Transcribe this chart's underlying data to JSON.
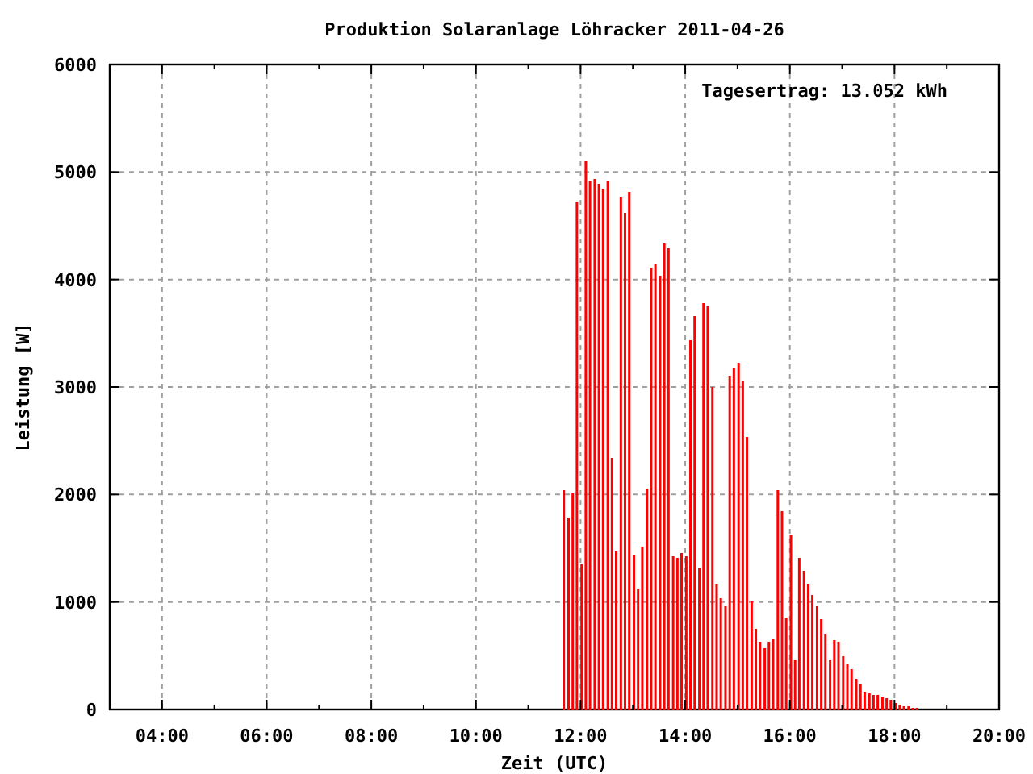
{
  "chart_data": {
    "type": "bar",
    "title": "Produktion Solaranlage Löhracker 2011-04-26",
    "xlabel": "Zeit (UTC)",
    "ylabel": "Leistung [W]",
    "annotations": [
      "Tagesertrag: 13.052 kWh"
    ],
    "x": [
      11.68,
      11.77,
      11.85,
      11.93,
      12.02,
      12.1,
      12.18,
      12.27,
      12.35,
      12.43,
      12.52,
      12.6,
      12.68,
      12.77,
      12.85,
      12.93,
      13.02,
      13.1,
      13.18,
      13.27,
      13.35,
      13.43,
      13.52,
      13.6,
      13.68,
      13.77,
      13.85,
      13.93,
      14.02,
      14.1,
      14.18,
      14.27,
      14.35,
      14.43,
      14.52,
      14.6,
      14.68,
      14.77,
      14.85,
      14.93,
      15.02,
      15.1,
      15.18,
      15.27,
      15.35,
      15.43,
      15.52,
      15.6,
      15.68,
      15.77,
      15.85,
      15.93,
      16.02,
      16.1,
      16.18,
      16.27,
      16.35,
      16.43,
      16.52,
      16.6,
      16.68,
      16.77,
      16.85,
      16.93,
      17.02,
      17.1,
      17.18,
      17.27,
      17.35,
      17.43,
      17.52,
      17.6,
      17.68,
      17.77,
      17.85,
      17.93,
      18.02,
      18.1,
      18.18,
      18.27,
      18.35,
      18.43
    ],
    "values": [
      2040,
      1785,
      2010,
      4725,
      1350,
      5100,
      4920,
      4935,
      4890,
      4845,
      4920,
      2340,
      1470,
      4770,
      4620,
      4815,
      1440,
      1125,
      1515,
      2055,
      4110,
      4140,
      4035,
      4335,
      4290,
      1425,
      1410,
      1455,
      1425,
      3435,
      3660,
      1320,
      3780,
      3750,
      3000,
      1170,
      1035,
      960,
      3105,
      3180,
      3225,
      3060,
      2535,
      1005,
      750,
      630,
      570,
      630,
      660,
      2040,
      1845,
      855,
      1620,
      465,
      1410,
      1290,
      1170,
      1065,
      960,
      840,
      705,
      465,
      645,
      630,
      495,
      420,
      375,
      285,
      240,
      165,
      150,
      135,
      135,
      120,
      105,
      90,
      60,
      45,
      30,
      30,
      15,
      15
    ],
    "color": "#ff0000",
    "xlim": [
      3,
      20
    ],
    "xticks": [
      {
        "value": 4,
        "label": "04:00"
      },
      {
        "value": 5,
        "label": null
      },
      {
        "value": 6,
        "label": "06:00"
      },
      {
        "value": 7,
        "label": null
      },
      {
        "value": 8,
        "label": "08:00"
      },
      {
        "value": 9,
        "label": null
      },
      {
        "value": 10,
        "label": "10:00"
      },
      {
        "value": 11,
        "label": null
      },
      {
        "value": 12,
        "label": "12:00"
      },
      {
        "value": 13,
        "label": null
      },
      {
        "value": 14,
        "label": "14:00"
      },
      {
        "value": 15,
        "label": null
      },
      {
        "value": 16,
        "label": "16:00"
      },
      {
        "value": 17,
        "label": null
      },
      {
        "value": 18,
        "label": "18:00"
      },
      {
        "value": 19,
        "label": null
      },
      {
        "value": 20,
        "label": "20:00"
      }
    ],
    "ylim": [
      0,
      6000
    ],
    "yticks": [
      0,
      1000,
      2000,
      3000,
      4000,
      5000,
      6000
    ],
    "grid": true
  }
}
